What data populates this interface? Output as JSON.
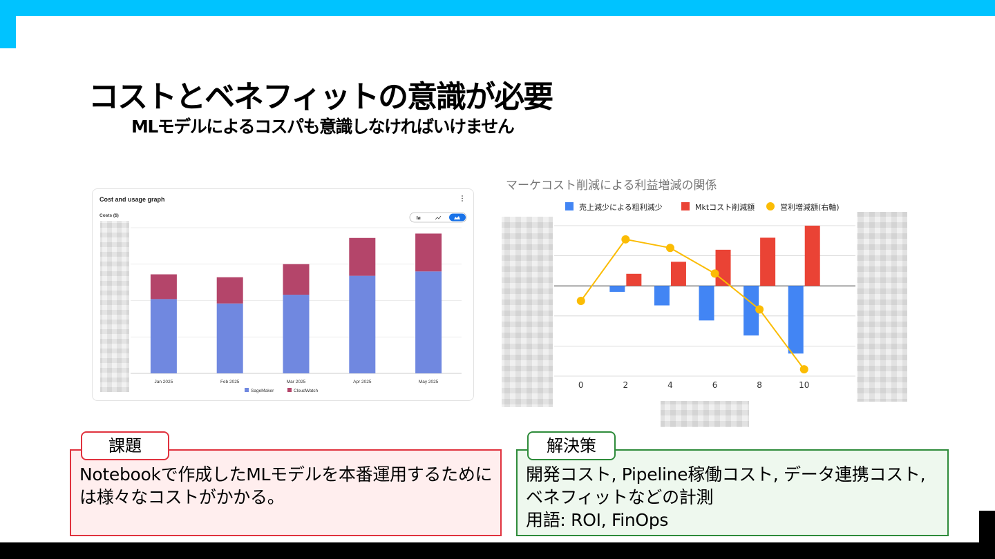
{
  "slide": {
    "title": "コストとベネフィットの意識が必要",
    "subtitle": "MLモデルによるコスパも意識しなければいけません",
    "colors": {
      "accent": "#00c3ff",
      "issue": "#e0323e",
      "solution": "#2e8b3a"
    }
  },
  "cost_graph": {
    "card_title": "Cost and usage graph",
    "menu_icon": "vertical-ellipsis-icon",
    "y_axis_label": "Costs ($)",
    "toggle_icons": [
      "bar-chart-icon",
      "line-chart-icon",
      "stacked-bar-icon"
    ],
    "legend": [
      "SageMaker",
      "CloudWatch"
    ],
    "colors": {
      "SageMaker": "#7088e0",
      "CloudWatch": "#b4456a"
    }
  },
  "profit_chart": {
    "title": "マーケコスト削減による利益増減の関係",
    "legend": [
      "売上減少による粗利減少",
      "Mktコスト削減額",
      "営利増減額(右軸)"
    ],
    "colors": {
      "gross": "#4285f4",
      "mkt": "#ea4335",
      "profit": "#fbbc04"
    }
  },
  "chart_data": [
    {
      "type": "bar",
      "title": "Cost and usage graph",
      "ylabel": "Costs ($)",
      "stacked": true,
      "categories": [
        "Jan 2025",
        "Feb 2025",
        "Mar 2025",
        "Apr 2025",
        "May 2025"
      ],
      "series": [
        {
          "name": "SageMaker",
          "values": [
            0.51,
            0.48,
            0.54,
            0.67,
            0.7
          ]
        },
        {
          "name": "CloudWatch",
          "values": [
            0.17,
            0.18,
            0.21,
            0.26,
            0.26
          ]
        }
      ],
      "ylim": [
        0,
        1
      ],
      "grid": true,
      "legend_position": "bottom"
    },
    {
      "type": "bar",
      "title": "マーケコスト削減による利益増減の関係",
      "x": [
        0,
        2,
        4,
        6,
        8,
        10
      ],
      "series": [
        {
          "name": "売上減少による粗利減少",
          "kind": "bar",
          "values": [
            0,
            -0.2,
            -0.65,
            -1.15,
            -1.65,
            -2.25
          ]
        },
        {
          "name": "Mktコスト削減額",
          "kind": "bar",
          "values": [
            0,
            0.4,
            0.8,
            1.2,
            1.6,
            2.0
          ]
        },
        {
          "name": "営利増減額(右軸)",
          "kind": "line",
          "axis": "right",
          "values": [
            0,
            1.8,
            1.55,
            0.8,
            -0.25,
            -2.0
          ]
        }
      ],
      "ylim": [
        -3,
        2
      ],
      "y2lim": [
        -2.2,
        2.2
      ],
      "grid": true,
      "legend_position": "top"
    }
  ],
  "issue": {
    "tag": "課題",
    "text": "Notebookで作成したMLモデルを本番運用するためには様々なコストがかかる。"
  },
  "solution": {
    "tag": "解決策",
    "lines": [
      "開発コスト, Pipeline稼働コスト, データ連携コスト,",
      "ベネフィットなどの計測",
      "用語: ROI, FinOps"
    ]
  }
}
